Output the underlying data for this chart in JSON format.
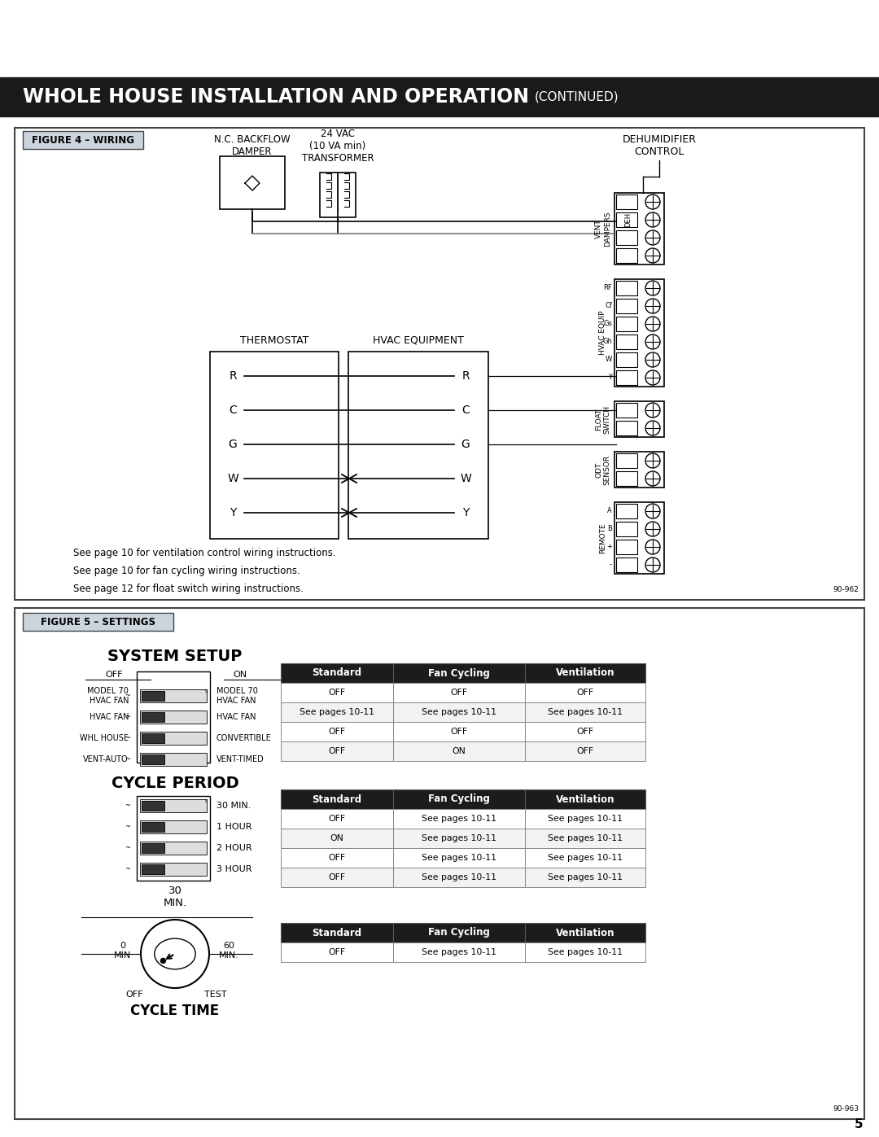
{
  "page_bg": "#ffffff",
  "top_banner_text": "WHOLE HOUSE INSTALLATION AND OPERATION",
  "top_banner_sub": "(CONTINUED)",
  "fig4_title": "FIGURE 4 – WIRING",
  "fig5_title": "FIGURE 5 – SETTINGS",
  "backflow_label": "N.C. BACKFLOW\nDAMPER",
  "transformer_label": "24 VAC\n(10 VA min)\nTRANSFORMER",
  "dehumidifier_label": "DEHUMIDIFIER\nCONTROL",
  "thermostat_label": "THERMOSTAT",
  "hvac_label": "HVAC EQUIPMENT",
  "page10_vent": "See page 10 for ventilation control wiring instructions.",
  "page10_fan": "See page 10 for fan cycling wiring instructions.",
  "page12_float": "See page 12 for float switch wiring instructions.",
  "wire_labels": [
    "R",
    "C",
    "G",
    "W",
    "Y"
  ],
  "connector_vent_label": "VENT\nDAMPERS",
  "connector_deh": "DEH",
  "connector_hvac_label": "HVAC EQUIP",
  "connector_hvac_rows": [
    "RF",
    "Cf",
    "Gs",
    "Gh",
    "W",
    "Y"
  ],
  "connector_float_label": "FLOAT\nSWITCH",
  "connector_odt_label": "ODT\nSENSOR",
  "connector_remote_label": "REMOTE",
  "connector_remote_rows": [
    "A",
    "B",
    "+",
    "-"
  ],
  "system_setup_title": "SYSTEM SETUP",
  "ss_off": "OFF",
  "ss_on": "ON",
  "ss_left": [
    "MODEL 70\nHVAC FAN",
    "WHL HOUSE\nVENT-AUTO"
  ],
  "ss_right": [
    "MODEL 70\nHVAC FAN",
    "CONVERTIBLE\nVENT-TIMED"
  ],
  "cycle_period_title": "CYCLE PERIOD",
  "cp_labels": [
    "30 MIN.",
    "1 HOUR",
    "2 HOUR",
    "3 HOUR"
  ],
  "dial_30": "30\nMIN.",
  "dial_0": "0\nMIN",
  "dial_60": "60\nMIN.",
  "dial_off": "OFF",
  "dial_test": "TEST",
  "cycle_time_title": "CYCLE TIME",
  "table1_headers": [
    "Standard",
    "Fan Cycling",
    "Ventilation"
  ],
  "table1_rows": [
    [
      "OFF",
      "OFF",
      "OFF"
    ],
    [
      "See pages 10-11",
      "See pages 10-11",
      "See pages 10-11"
    ],
    [
      "OFF",
      "OFF",
      "OFF"
    ],
    [
      "OFF",
      "ON",
      "OFF"
    ]
  ],
  "table2_headers": [
    "Standard",
    "Fan Cycling",
    "Ventilation"
  ],
  "table2_rows": [
    [
      "OFF",
      "See pages 10-11",
      "See pages 10-11"
    ],
    [
      "ON",
      "See pages 10-11",
      "See pages 10-11"
    ],
    [
      "OFF",
      "See pages 10-11",
      "See pages 10-11"
    ],
    [
      "OFF",
      "See pages 10-11",
      "See pages 10-11"
    ]
  ],
  "table3_headers": [
    "Standard",
    "Fan Cycling",
    "Ventilation"
  ],
  "table3_rows": [
    [
      "OFF",
      "See pages 10-11",
      "See pages 10-11"
    ]
  ],
  "fig_num_962": "90-962",
  "fig_num_963": "90-963",
  "page_number": "5"
}
